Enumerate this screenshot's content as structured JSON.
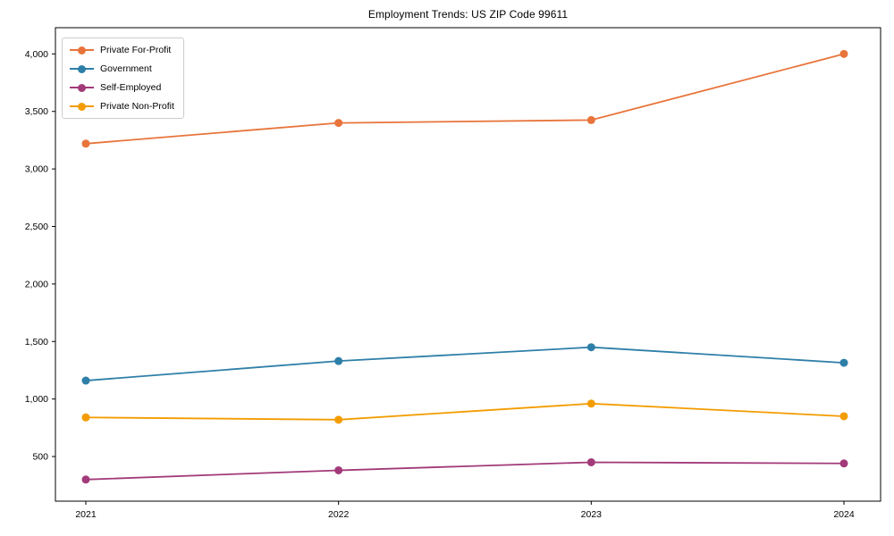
{
  "chart_data": {
    "type": "line",
    "title": "Employment Trends: US ZIP Code 99611",
    "xlabel": "",
    "ylabel": "",
    "x": [
      "2021",
      "2022",
      "2023",
      "2024"
    ],
    "series": [
      {
        "name": "Private For-Profit",
        "color": "#e8743b",
        "values": [
          3220,
          3400,
          3425,
          4000
        ]
      },
      {
        "name": "Government",
        "color": "#2e7fa8",
        "values": [
          1160,
          1330,
          1450,
          1315
        ]
      },
      {
        "name": "Self-Employed",
        "color": "#a23a79",
        "values": [
          300,
          380,
          450,
          440
        ]
      },
      {
        "name": "Private Non-Profit",
        "color": "#f39c00",
        "values": [
          840,
          820,
          960,
          850
        ]
      }
    ],
    "yticks": [
      500,
      1000,
      1500,
      2000,
      2500,
      3000,
      3500,
      4000
    ],
    "ylim": [
      112,
      4228
    ],
    "grid": false,
    "legend_position": "upper left",
    "axis_color": "#000000"
  }
}
